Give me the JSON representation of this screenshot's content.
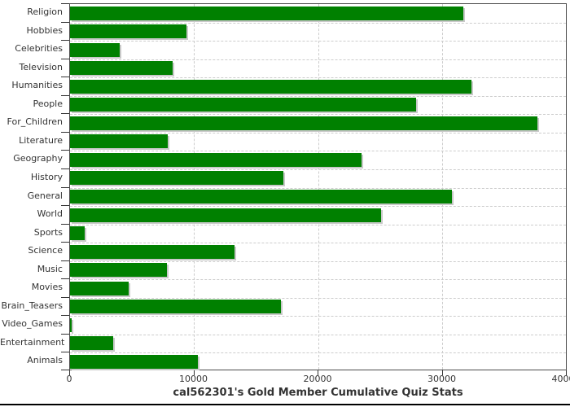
{
  "title": "cal562301's Gold Member Cumulative Quiz Stats",
  "colors": {
    "bar": "#008000",
    "bar_shadow": "#c9c9c9",
    "gridline": "#cccccc",
    "plot_border": "#4d4d4d",
    "axis": "#333333",
    "text": "#333333",
    "background": "#ffffff",
    "bottom_rule": "#000000"
  },
  "chart_data": {
    "type": "bar",
    "orientation": "horizontal",
    "title": "cal562301's Gold Member Cumulative Quiz Stats",
    "xlabel": "",
    "ylabel": "",
    "grid": true,
    "legend": false,
    "xlim": [
      0,
      40000
    ],
    "xticks": [
      0,
      10000,
      20000,
      30000,
      40000
    ],
    "xtick_labels": [
      "0",
      "10000",
      "20000",
      "30000",
      "40000"
    ],
    "categories": [
      "Religion",
      "Hobbies",
      "Celebrities",
      "Television",
      "Humanities",
      "People",
      "For_Children",
      "Literature",
      "Geography",
      "History",
      "General",
      "World",
      "Sports",
      "Science",
      "Music",
      "Movies",
      "Brain_Teasers",
      "Video_Games",
      "Entertainment",
      "Animals"
    ],
    "values": [
      31700,
      9400,
      4000,
      8300,
      32400,
      27900,
      37700,
      7900,
      23500,
      17200,
      30800,
      25100,
      1200,
      13300,
      7800,
      4700,
      17000,
      150,
      3500,
      10300
    ]
  }
}
